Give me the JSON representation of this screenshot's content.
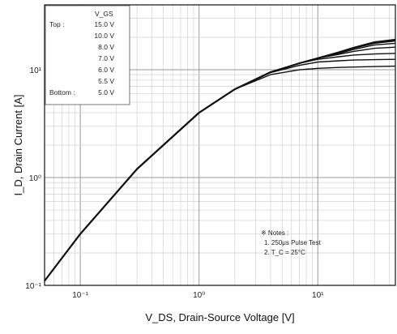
{
  "chart_data": {
    "type": "line",
    "title": "",
    "xlabel": "V_DS, Drain-Source Voltage [V]",
    "ylabel": "I_D, Drain Current [A]",
    "xscale": "log",
    "yscale": "log",
    "xlim": [
      0.05,
      45
    ],
    "ylim": [
      0.1,
      40
    ],
    "grid": true,
    "x_ticks": [
      {
        "value": 0.1,
        "label": "10⁻¹"
      },
      {
        "value": 1,
        "label": "10⁰"
      },
      {
        "value": 10,
        "label": "10¹"
      }
    ],
    "y_ticks": [
      {
        "value": 0.1,
        "label": "10⁻¹"
      },
      {
        "value": 1,
        "label": "10⁰"
      },
      {
        "value": 10,
        "label": "10¹"
      }
    ],
    "legend": {
      "placement": "top-left",
      "header": "V_GS",
      "top_label": "Top :",
      "bottom_label": "Bottom :",
      "entries": [
        "15.0 V",
        "10.0 V",
        "8.0 V",
        "7.0 V",
        "6.0 V",
        "5.5 V",
        "5.0 V"
      ]
    },
    "notes": {
      "title": "※ Notes :",
      "lines": [
        "1. 250μs Pulse Test",
        "2. T_C = 25°C"
      ]
    },
    "series": [
      {
        "name": "15.0 V",
        "x": [
          0.05,
          0.1,
          0.3,
          1,
          2,
          4,
          7,
          10,
          15,
          20,
          30,
          45
        ],
        "y": [
          0.11,
          0.3,
          1.2,
          4.0,
          6.6,
          9.5,
          11.5,
          12.8,
          14.5,
          16.0,
          18.0,
          19.0
        ]
      },
      {
        "name": "10.0 V",
        "x": [
          0.05,
          0.1,
          0.3,
          1,
          2,
          4,
          7,
          10,
          15,
          20,
          30,
          45
        ],
        "y": [
          0.11,
          0.3,
          1.2,
          4.0,
          6.6,
          9.5,
          11.5,
          12.8,
          14.4,
          15.8,
          17.6,
          18.5
        ]
      },
      {
        "name": "8.0 V",
        "x": [
          0.05,
          0.1,
          0.3,
          1,
          2,
          4,
          7,
          10,
          15,
          20,
          30,
          45
        ],
        "y": [
          0.11,
          0.3,
          1.2,
          4.0,
          6.6,
          9.5,
          11.5,
          12.8,
          14.2,
          15.4,
          17.0,
          17.6
        ]
      },
      {
        "name": "7.0 V",
        "x": [
          0.05,
          0.1,
          0.3,
          1,
          2,
          4,
          7,
          10,
          15,
          20,
          30,
          45
        ],
        "y": [
          0.11,
          0.3,
          1.2,
          4.0,
          6.6,
          9.5,
          11.5,
          12.8,
          13.9,
          14.8,
          15.8,
          16.2
        ]
      },
      {
        "name": "6.0 V",
        "x": [
          0.05,
          0.1,
          0.3,
          1,
          2,
          4,
          7,
          10,
          15,
          20,
          30,
          45
        ],
        "y": [
          0.11,
          0.3,
          1.2,
          4.0,
          6.6,
          9.5,
          11.5,
          12.5,
          13.2,
          13.7,
          14.0,
          14.2
        ]
      },
      {
        "name": "5.5 V",
        "x": [
          0.05,
          0.1,
          0.3,
          1,
          2,
          4,
          7,
          10,
          15,
          20,
          30,
          45
        ],
        "y": [
          0.11,
          0.3,
          1.2,
          4.0,
          6.6,
          9.4,
          11.0,
          11.8,
          12.1,
          12.3,
          12.4,
          12.5
        ]
      },
      {
        "name": "5.0 V",
        "x": [
          0.05,
          0.1,
          0.3,
          1,
          2,
          4,
          7,
          10,
          15,
          20,
          30,
          45
        ],
        "y": [
          0.11,
          0.3,
          1.2,
          4.0,
          6.6,
          9.0,
          10.0,
          10.3,
          10.5,
          10.6,
          10.7,
          10.8
        ]
      }
    ]
  }
}
